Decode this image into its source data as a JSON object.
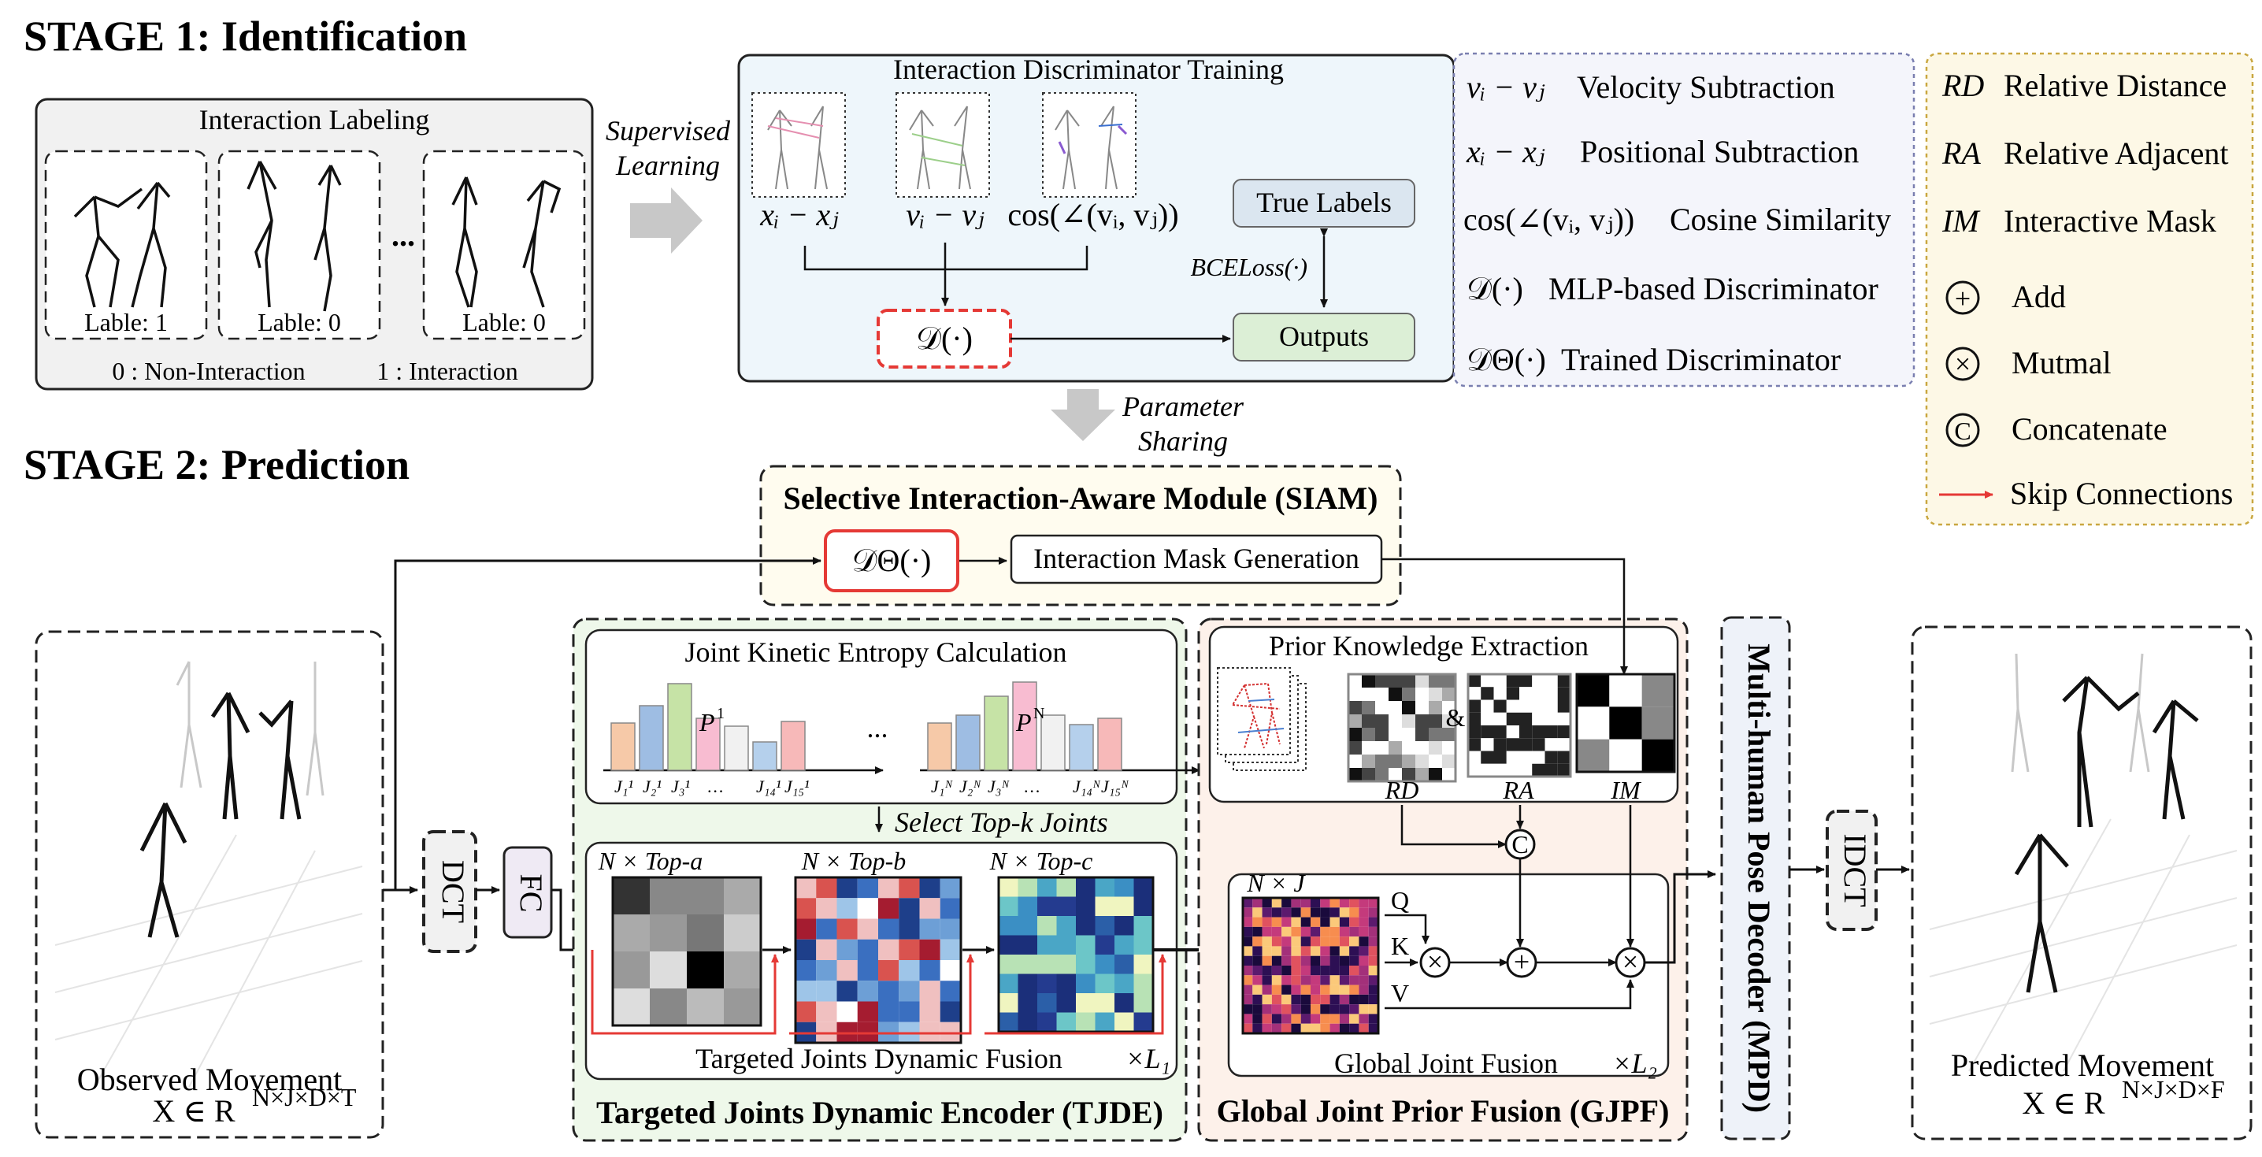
{
  "stage1": {
    "title": "STAGE 1: Identification",
    "labeling": {
      "title": "Interaction Labeling",
      "cards": [
        "Lable: 1",
        "Lable: 0",
        "Lable: 0"
      ],
      "ellipsis": "...",
      "legend_non": "0 : Non-Interaction",
      "legend_int": "1 : Interaction"
    },
    "supervised": [
      "Supervised",
      "Learning"
    ],
    "discriminator": {
      "title": "Interaction Discriminator Training",
      "f1": "xᵢ − xⱼ",
      "f2": "vᵢ − vⱼ",
      "f3": "cos(∠(vᵢ, vⱼ))",
      "d": "𝒟(·)",
      "true_labels": "True Labels",
      "bce": "BCELoss(·)",
      "outputs": "Outputs"
    },
    "param_sharing": [
      "Parameter",
      "Sharing"
    ]
  },
  "legend_left": [
    {
      "sym": "vᵢ − vⱼ",
      "label": "Velocity Subtraction"
    },
    {
      "sym": "xᵢ − xⱼ",
      "label": "Positional Subtraction"
    },
    {
      "sym": "cos(∠(vᵢ, vⱼ))",
      "label": "Cosine Similarity"
    },
    {
      "sym": "𝒟(·)",
      "label": "MLP-based Discriminator"
    },
    {
      "sym": "𝒟Θ(·)",
      "label": "Trained  Discriminator"
    }
  ],
  "legend_right": [
    {
      "sym": "RD",
      "label": "Relative Distance"
    },
    {
      "sym": "RA",
      "label": "Relative Adjacent"
    },
    {
      "sym": "IM",
      "label": "Interactive Mask"
    },
    {
      "sym": "+",
      "label": "Add"
    },
    {
      "sym": "×",
      "label": "Mutmal"
    },
    {
      "sym": "C",
      "label": "Concatenate"
    },
    {
      "sym": "arrow",
      "label": "Skip Connections"
    }
  ],
  "stage2": {
    "title": "STAGE 2: Prediction",
    "siam": {
      "title": "Selective Interaction-Aware Module (SIAM)",
      "d": "𝒟Θ(·)",
      "mask": "Interaction Mask Generation"
    },
    "observed": {
      "label": "Observed Movement",
      "formula": "X ∈ R",
      "sup": "N×J×D×T"
    },
    "predicted": {
      "label": "Predicted Movement",
      "formula": "X ∈ R",
      "sup": "N×J×D×F"
    },
    "dct": "DCT",
    "fc": "FC",
    "idct": "IDCT",
    "mpd": "Multi-human Pose Decoder (MPD)",
    "tjde": {
      "title": "Targeted Joints Dynamic Encoder (TJDE)",
      "entropy_title": "Joint Kinetic Entropy Calculation",
      "p1": "P",
      "p1_sup": "1",
      "pn": "P",
      "pn_sup": "N",
      "ellipsis": "...",
      "xticks1": [
        "J₁¹",
        "J₂¹",
        "J₃¹",
        "…",
        "J₁₄¹",
        "J₁₅¹"
      ],
      "xticksN": [
        "J₁ᴺ",
        "J₂ᴺ",
        "J₃ᴺ",
        "…",
        "J₁₄ᴺ",
        "J₁₅ᴺ"
      ],
      "select": "Select Top-k Joints",
      "tops": [
        "N × Top-a",
        "N × Top-b",
        "N × Top-c"
      ],
      "fusion": "Targeted Joints Dynamic Fusion",
      "l1": "×L₁"
    },
    "gjpf": {
      "title": "Global Joint Prior Fusion (GJPF)",
      "prior": "Prior Knowledge Extraction",
      "rd": "RD",
      "ra": "RA",
      "im": "IM",
      "amp": "&",
      "nj": "N × J",
      "q": "Q",
      "k": "K",
      "v": "V",
      "fusion": "Global Joint Fusion",
      "l2": "×L₂",
      "c": "C",
      "plus": "+",
      "times": "×"
    }
  },
  "colors": {
    "red": "#e53935",
    "gray_arrow": "#c8c8c8",
    "disc_bg": "#eef6fb",
    "siam_bg": "#fffcef",
    "tjde_bg": "#eef8ea",
    "gjpf_bg": "#fdf1ea",
    "legend1_bg": "#f4f5fb",
    "legend2_bg": "#fdf8e6"
  }
}
